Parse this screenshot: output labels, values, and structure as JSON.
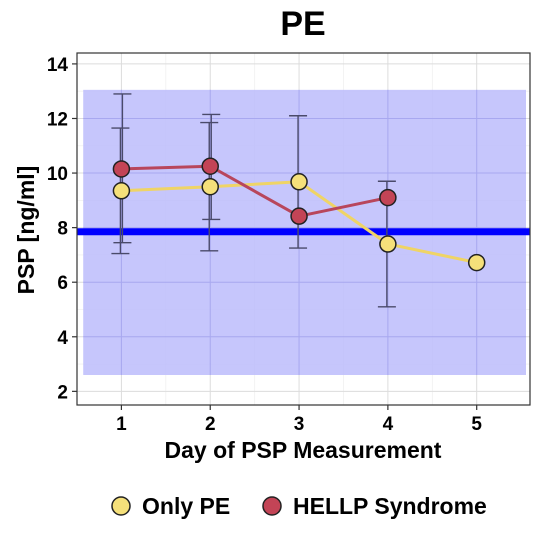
{
  "chart_data": {
    "type": "line",
    "title": "PE",
    "xlabel": "Day of PSP Measurement",
    "ylabel": "PSP [ng/ml]",
    "x": [
      1,
      2,
      3,
      4,
      5
    ],
    "xlim": [
      0.5,
      5.6
    ],
    "ylim": [
      1.5,
      14.4
    ],
    "y_ticks": [
      2,
      4,
      6,
      8,
      10,
      12,
      14
    ],
    "grid": true,
    "reference_band": {
      "low": 2.6,
      "high": 13.05,
      "color": "#bcbcfb"
    },
    "reference_line": {
      "y": 7.85,
      "color": "#0000ff"
    },
    "series": [
      {
        "name": "Only PE",
        "color": "#f5e07a",
        "line_color": "#efd466",
        "x": [
          1,
          2,
          3,
          4,
          5
        ],
        "y": [
          9.35,
          9.5,
          9.68,
          7.4,
          6.72
        ],
        "err_low": [
          7.05,
          7.15,
          7.25,
          5.1,
          null
        ],
        "err_high": [
          11.65,
          11.85,
          12.1,
          9.7,
          null
        ]
      },
      {
        "name": "HELLP Syndrome",
        "color": "#c34456",
        "line_color": "#b8465c",
        "x": [
          1,
          2,
          3,
          4
        ],
        "y": [
          10.15,
          10.25,
          8.42,
          9.1
        ],
        "err_low": [
          7.45,
          8.3,
          null,
          null
        ],
        "err_high": [
          12.9,
          12.15,
          null,
          null
        ]
      }
    ],
    "legend_position": "bottom"
  }
}
